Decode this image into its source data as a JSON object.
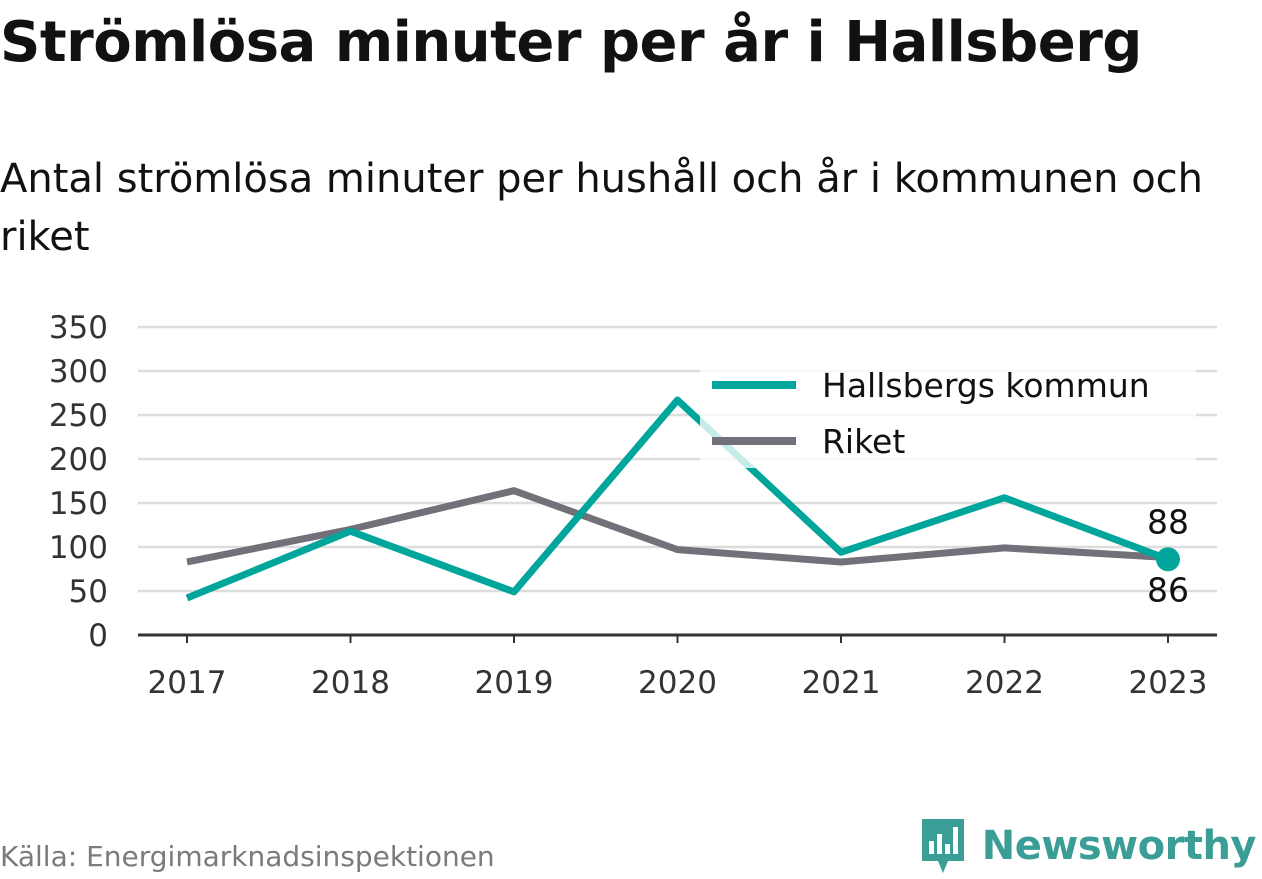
{
  "title": "Strömlösa minuter per år i Hallsberg",
  "subtitle": "Antal strömlösa minuter per hushåll och år i kommunen och riket",
  "source": "Källa: Energimarknadsinspektionen",
  "brand": {
    "name": "Newsworthy",
    "icon": "newsworthy-logo-icon",
    "color": "#3a9e96"
  },
  "chart_data": {
    "type": "line",
    "title": "Strömlösa minuter per år i Hallsberg",
    "subtitle": "Antal strömlösa minuter per hushåll och år i kommunen och riket",
    "x": [
      "2017",
      "2018",
      "2019",
      "2020",
      "2021",
      "2022",
      "2023"
    ],
    "ylim": [
      0,
      350
    ],
    "yticks": [
      0,
      50,
      100,
      150,
      200,
      250,
      300,
      350
    ],
    "grid": true,
    "legend": "top-right",
    "series": [
      {
        "name": "Hallsbergs kommun",
        "color": "#00a59b",
        "values": [
          42,
          118,
          49,
          267,
          94,
          156,
          86
        ],
        "end_label": "86",
        "end_marker": true
      },
      {
        "name": "Riket",
        "color": "#727179",
        "values": [
          83,
          120,
          164,
          97,
          83,
          99,
          88
        ],
        "end_label": "88"
      }
    ]
  }
}
